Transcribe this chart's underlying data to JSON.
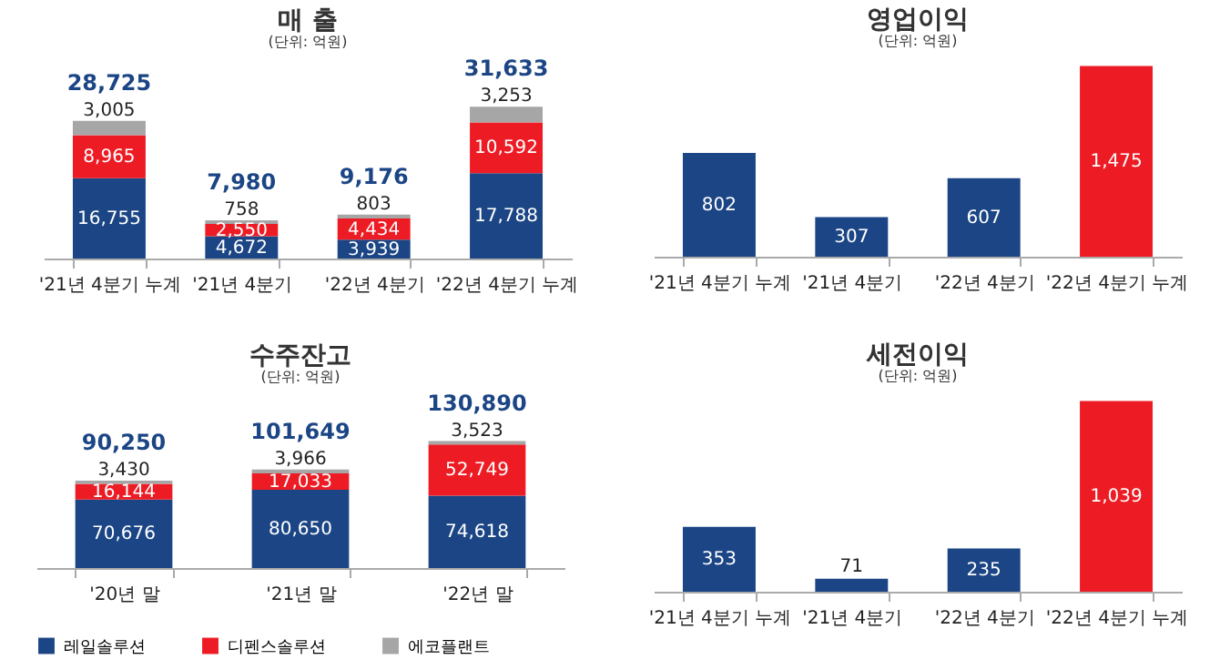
{
  "chart_data": [
    {
      "type": "bar",
      "title": "매 출",
      "subtitle": "(단위: 억원)",
      "stacked": true,
      "categories": [
        "'21년 4분기 누계",
        "'21년 4분기",
        "'22년 4분기",
        "'22년 4분기 누계"
      ],
      "series": [
        {
          "color": "#1b4584",
          "values": [
            16755,
            4672,
            3939,
            17788
          ],
          "value_labels": [
            "16,755",
            "4,672",
            "3,939",
            "17,788"
          ]
        },
        {
          "color": "#ed1c24",
          "values": [
            8965,
            2550,
            4434,
            10592
          ],
          "value_labels": [
            "8,965",
            "2,550",
            "4,434",
            "10,592"
          ]
        },
        {
          "color": "#a6a6a6",
          "values": [
            3005,
            758,
            803,
            3253
          ],
          "value_labels": [
            "3,005",
            "758",
            "803",
            "3,253"
          ]
        }
      ],
      "totals": [
        "28,725",
        "7,980",
        "9,176",
        "31,633"
      ],
      "tick_labels": "x"
    },
    {
      "type": "bar",
      "title": "영업이익",
      "subtitle": "(단위: 억원)",
      "categories": [
        "'21년 4분기 누계",
        "'21년 4분기",
        "'22년 4분기",
        "'22년 4분기 누계"
      ],
      "values": [
        802,
        307,
        607,
        1475
      ],
      "value_labels": [
        "802",
        "307",
        "607",
        "1,475"
      ],
      "colors": [
        "#1b4584",
        "#1b4584",
        "#1b4584",
        "#ed1c24"
      ],
      "tick_labels": "x"
    },
    {
      "type": "bar",
      "title": "수주잔고",
      "subtitle": "(단위: 억원)",
      "stacked": true,
      "categories": [
        "'20년 말",
        "'21년 말",
        "'22년 말"
      ],
      "series": [
        {
          "name": "레일솔루션",
          "color": "#1b4584",
          "values": [
            70676,
            80650,
            74618
          ],
          "value_labels": [
            "70,676",
            "80,650",
            "74,618"
          ]
        },
        {
          "name": "디펜스솔루션",
          "color": "#ed1c24",
          "values": [
            16144,
            17033,
            52749
          ],
          "value_labels": [
            "16,144",
            "17,033",
            "52,749"
          ]
        },
        {
          "name": "에코플랜트",
          "color": "#a6a6a6",
          "values": [
            3430,
            3966,
            3523
          ],
          "value_labels": [
            "3,430",
            "3,966",
            "3,523"
          ]
        }
      ],
      "totals": [
        "90,250",
        "101,649",
        "130,890"
      ],
      "legend": "bottom",
      "tick_labels": "x"
    },
    {
      "type": "bar",
      "title": "세전이익",
      "subtitle": "(단위: 억원)",
      "categories": [
        "'21년 4분기 누계",
        "'21년 4분기",
        "'22년 4분기",
        "'22년 4분기 누계"
      ],
      "values": [
        353,
        71,
        235,
        1039
      ],
      "value_labels": [
        "353",
        "71",
        "235",
        "1,039"
      ],
      "colors": [
        "#1b4584",
        "#1b4584",
        "#1b4584",
        "#ed1c24"
      ],
      "tick_labels": "x"
    }
  ]
}
